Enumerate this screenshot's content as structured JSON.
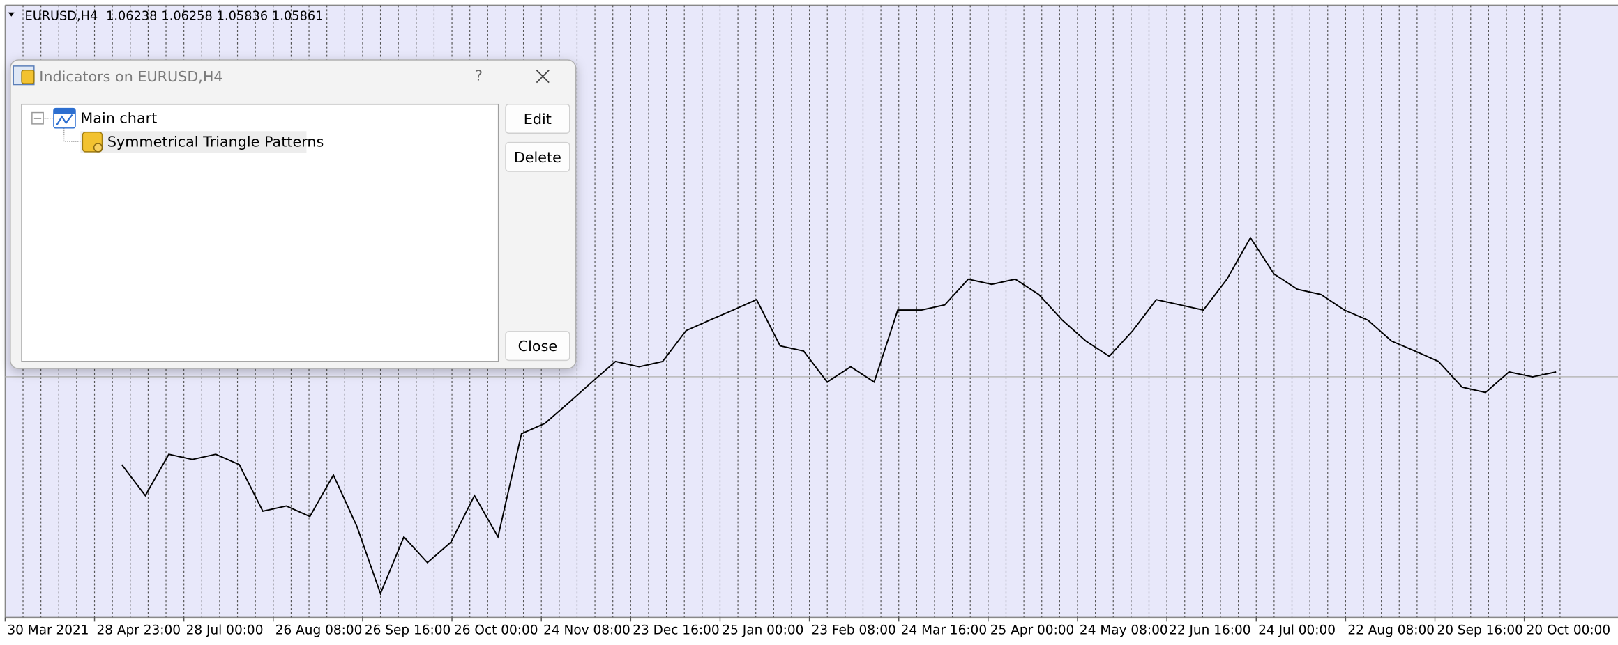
{
  "chart_window": {
    "symbol": "EURUSD,H4",
    "open": 1.06238,
    "high": 1.06258,
    "low": 1.05836,
    "close": 1.05861
  },
  "chart_data": {
    "type": "line",
    "color": "#000000",
    "grid": true,
    "ylim": [
      0.98,
      1.18
    ],
    "x_tick_labels": [
      "30 Mar 2021",
      "28 Apr 23:00",
      "28 Jul 00:00",
      "26 Aug 08:00",
      "26 Sep 16:00",
      "26 Oct 00:00",
      "24 Nov 08:00",
      "23 Dec 16:00",
      "25 Jan 00:00",
      "23 Feb 08:00",
      "24 Mar 16:00",
      "25 Apr 00:00",
      "24 May 08:00",
      "22 Jun 16:00",
      "24 Jul 00:00",
      "22 Aug 08:00",
      "20 Sep 16:00",
      "20 Oct 00:00"
    ],
    "values": [
      1.0299,
      1.0198,
      1.0333,
      1.0316,
      1.0333,
      1.0299,
      1.0147,
      1.0164,
      1.013,
      1.0265,
      1.0097,
      0.9878,
      1.0063,
      0.9979,
      1.0046,
      1.0198,
      1.0063,
      1.04,
      1.0434,
      1.0501,
      1.0569,
      1.0636,
      1.0619,
      1.0636,
      1.0737,
      1.0771,
      1.0804,
      1.0838,
      1.0687,
      1.067,
      1.0569,
      1.0619,
      1.0569,
      1.0804,
      1.0804,
      1.0821,
      1.0905,
      1.0888,
      1.0905,
      1.0855,
      1.0771,
      1.0703,
      1.0653,
      1.0737,
      1.0838,
      1.0821,
      1.0804,
      1.0905,
      1.104,
      1.0922,
      1.0872,
      1.0855,
      1.0804,
      1.0771,
      1.0703,
      1.067,
      1.0636,
      1.0552,
      1.0535,
      1.0602,
      1.0586,
      1.0602
    ]
  },
  "dialog": {
    "title": "Indicators on EURUSD,H4",
    "help": "?",
    "tree": {
      "root": "Main chart",
      "children": [
        "Symmetrical Triangle Patterns"
      ]
    },
    "buttons": [
      "Edit",
      "Delete",
      "Close"
    ]
  }
}
